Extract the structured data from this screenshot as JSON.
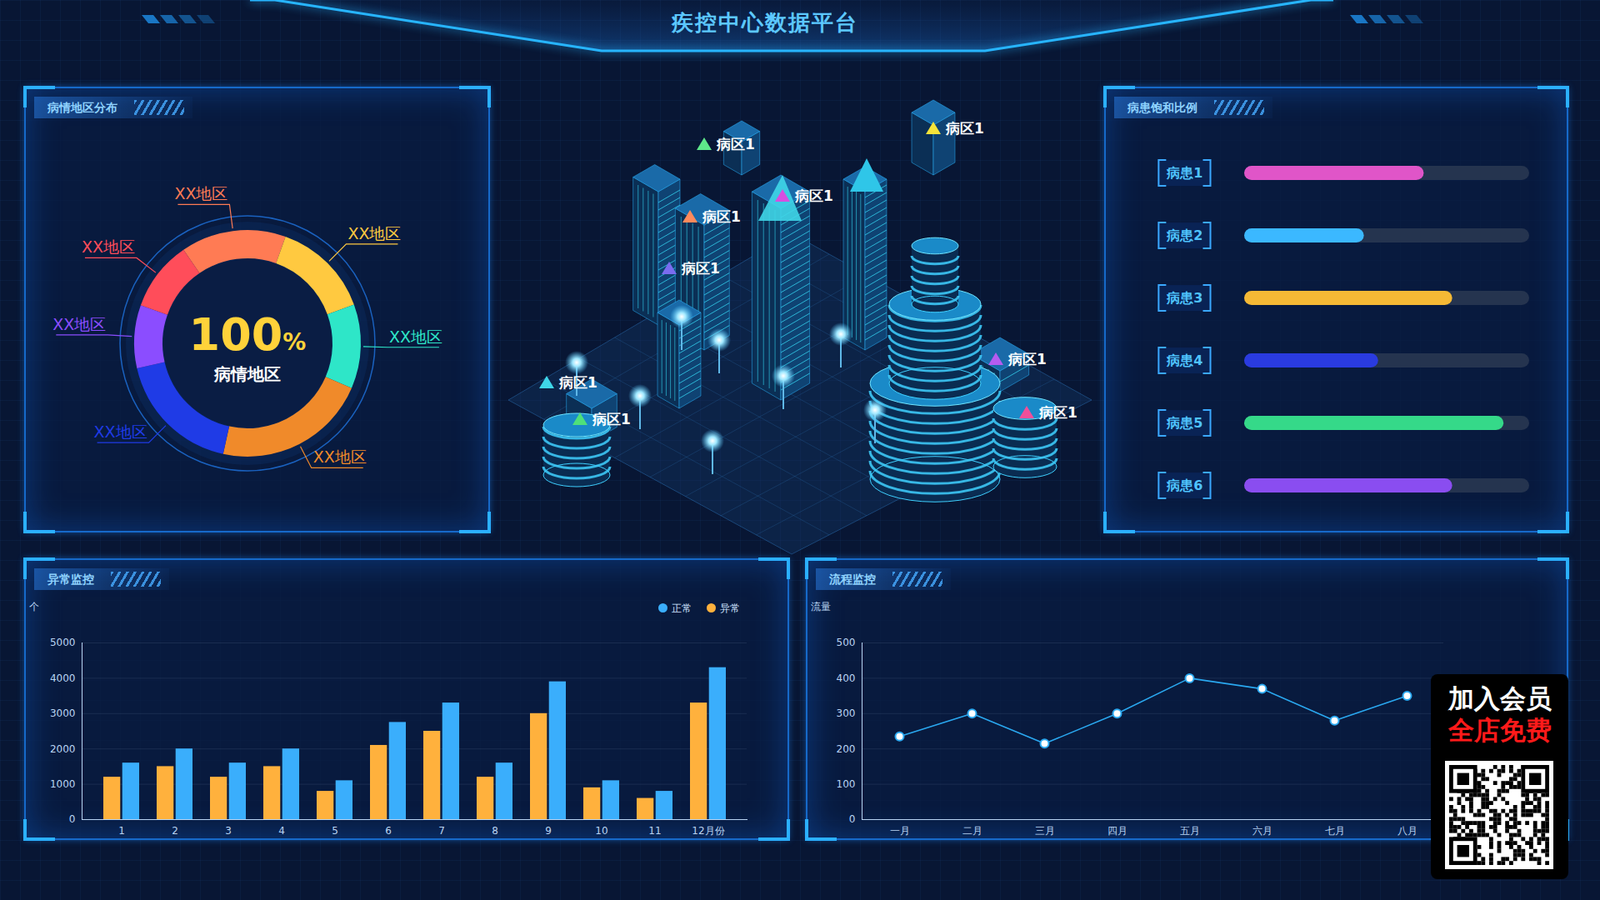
{
  "title": "疾控中心数据平台",
  "chart_data": [
    {
      "type": "pie",
      "title": "病情地区分布",
      "categories": [
        "XX地区",
        "XX地区",
        "XX地区",
        "XX地区",
        "XX地区",
        "XX地区",
        "XX地区"
      ],
      "values": [
        15,
        14,
        12,
        22,
        18,
        9,
        10
      ],
      "colors": [
        "#ff7b54",
        "#ffc940",
        "#2ee6c8",
        "#f08a2a",
        "#1f3be6",
        "#8b4dff",
        "#ff4d5a"
      ],
      "center_text": "100%",
      "center_subtext": "病情地区"
    },
    {
      "type": "bar",
      "title": "病患饱和比例",
      "orientation": "horizontal",
      "categories": [
        "病患1",
        "病患2",
        "病患3",
        "病患4",
        "病患5",
        "病患6"
      ],
      "values": [
        63,
        42,
        73,
        47,
        91,
        73
      ],
      "colors": [
        "#e055c8",
        "#3bb8ff",
        "#f5b935",
        "#2a3be0",
        "#35d989",
        "#8a4df0"
      ],
      "xlim": [
        0,
        100
      ],
      "tick_labels": "y"
    },
    {
      "type": "bar",
      "title": "异常监控",
      "categories": [
        "1",
        "2",
        "3",
        "4",
        "5",
        "6",
        "7",
        "8",
        "9",
        "10",
        "11",
        "12月份"
      ],
      "series": [
        {
          "name": "正常",
          "color": "#3aaefc",
          "values": [
            1600,
            2000,
            1600,
            2000,
            1100,
            2750,
            3300,
            1600,
            3900,
            1100,
            800,
            4300
          ]
        },
        {
          "name": "异常",
          "color": "#ffb13d",
          "values": [
            1200,
            1500,
            1200,
            1500,
            800,
            2100,
            2500,
            1200,
            3000,
            900,
            600,
            3300
          ]
        }
      ],
      "y_label": "个",
      "ylim": [
        0,
        5000
      ],
      "yticks": [
        0,
        1000,
        2000,
        3000,
        4000,
        5000
      ],
      "grid": true,
      "legend": "top-right"
    },
    {
      "type": "line",
      "title": "流程监控",
      "categories": [
        "一月",
        "二月",
        "三月",
        "四月",
        "五月",
        "六月",
        "七月",
        "八月"
      ],
      "values": [
        235,
        300,
        215,
        300,
        400,
        370,
        280,
        350
      ],
      "color": "#2aa8f0",
      "marker": "circle",
      "y_label": "流量",
      "ylim": [
        0,
        500
      ],
      "yticks": [
        0,
        100,
        200,
        300,
        400,
        500
      ],
      "grid": true
    }
  ],
  "map": {
    "markers": [
      {
        "label": "病区1",
        "color": "#5ee88a"
      },
      {
        "label": "病区1",
        "color": "#f5e33a"
      },
      {
        "label": "病区1",
        "color": "#d64fe0"
      },
      {
        "label": "病区1",
        "color": "#ff8a5c"
      },
      {
        "label": "病区1",
        "color": "#7a6cf0"
      },
      {
        "label": "病区1",
        "color": "#b45cf0"
      },
      {
        "label": "病区1",
        "color": "#f04f9a"
      },
      {
        "label": "病区1",
        "color": "#3fd6e8"
      },
      {
        "label": "病区1",
        "color": "#4ee07a"
      }
    ]
  },
  "overlay": {
    "lines": [
      "加入会员",
      "全店免费"
    ]
  }
}
